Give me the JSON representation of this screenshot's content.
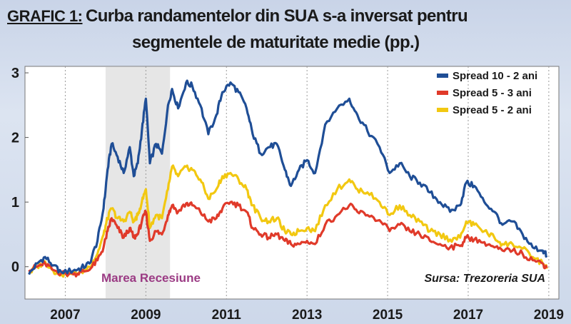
{
  "figure_label": "GRAFIC 1:",
  "title_line1": "Curba randamentelor din SUA s-a inversat pentru",
  "title_line2": "segmentele de maturitate medie (pp.)",
  "chart_data": {
    "type": "line",
    "title": "Curba randamentelor din SUA s-a inversat pentru segmentele de maturitate medie (pp.)",
    "x_ticks": [
      "2007",
      "2009",
      "2011",
      "2013",
      "2015",
      "2017",
      "2019"
    ],
    "y_ticks": [
      "0",
      "1",
      "2",
      "3"
    ],
    "xlim": [
      2006.0,
      2019.25
    ],
    "ylim": [
      -0.5,
      3.1
    ],
    "grid": "vertical-dotted",
    "legend_position": "top-right",
    "shaded_region": {
      "x": [
        2008.0,
        2009.6
      ],
      "label": "Marea Recesiune",
      "color": "#e6e6e6"
    },
    "source": "Sursa: Trezoreria SUA",
    "series": [
      {
        "name": "Spread 10 - 2 ani",
        "color": "#1f4e96",
        "points": [
          [
            2006.1,
            -0.12
          ],
          [
            2006.3,
            0.05
          ],
          [
            2006.5,
            0.15
          ],
          [
            2006.7,
            0.02
          ],
          [
            2006.9,
            -0.08
          ],
          [
            2007.2,
            -0.06
          ],
          [
            2007.4,
            -0.02
          ],
          [
            2007.6,
            0.05
          ],
          [
            2007.8,
            0.4
          ],
          [
            2007.95,
            0.9
          ],
          [
            2008.05,
            1.5
          ],
          [
            2008.15,
            1.9
          ],
          [
            2008.3,
            1.7
          ],
          [
            2008.45,
            1.45
          ],
          [
            2008.6,
            1.85
          ],
          [
            2008.7,
            1.4
          ],
          [
            2008.8,
            1.6
          ],
          [
            2008.9,
            2.1
          ],
          [
            2009.0,
            2.6
          ],
          [
            2009.1,
            1.6
          ],
          [
            2009.25,
            1.9
          ],
          [
            2009.4,
            1.75
          ],
          [
            2009.55,
            2.5
          ],
          [
            2009.65,
            2.75
          ],
          [
            2009.8,
            2.45
          ],
          [
            2010.0,
            2.85
          ],
          [
            2010.15,
            2.8
          ],
          [
            2010.35,
            2.5
          ],
          [
            2010.55,
            2.05
          ],
          [
            2010.75,
            2.35
          ],
          [
            2010.9,
            2.7
          ],
          [
            2011.1,
            2.85
          ],
          [
            2011.3,
            2.7
          ],
          [
            2011.5,
            2.45
          ],
          [
            2011.65,
            2.05
          ],
          [
            2011.85,
            1.75
          ],
          [
            2012.05,
            1.85
          ],
          [
            2012.25,
            1.9
          ],
          [
            2012.45,
            1.5
          ],
          [
            2012.6,
            1.25
          ],
          [
            2012.8,
            1.5
          ],
          [
            2013.0,
            1.65
          ],
          [
            2013.2,
            1.45
          ],
          [
            2013.45,
            2.2
          ],
          [
            2013.75,
            2.45
          ],
          [
            2014.05,
            2.6
          ],
          [
            2014.25,
            2.35
          ],
          [
            2014.5,
            2.1
          ],
          [
            2014.8,
            1.85
          ],
          [
            2015.05,
            1.45
          ],
          [
            2015.3,
            1.6
          ],
          [
            2015.55,
            1.4
          ],
          [
            2015.8,
            1.3
          ],
          [
            2016.05,
            1.15
          ],
          [
            2016.3,
            1.0
          ],
          [
            2016.55,
            0.85
          ],
          [
            2016.8,
            0.95
          ],
          [
            2016.95,
            1.3
          ],
          [
            2017.15,
            1.25
          ],
          [
            2017.4,
            1.0
          ],
          [
            2017.65,
            0.85
          ],
          [
            2017.85,
            0.65
          ],
          [
            2018.1,
            0.7
          ],
          [
            2018.35,
            0.5
          ],
          [
            2018.6,
            0.3
          ],
          [
            2018.85,
            0.25
          ],
          [
            2018.95,
            0.17
          ]
        ]
      },
      {
        "name": "Spread 5 - 3 ani",
        "color": "#e03a2a",
        "points": [
          [
            2006.1,
            -0.05
          ],
          [
            2006.3,
            0.0
          ],
          [
            2006.5,
            0.05
          ],
          [
            2006.7,
            -0.05
          ],
          [
            2006.9,
            -0.1
          ],
          [
            2007.2,
            -0.12
          ],
          [
            2007.4,
            -0.08
          ],
          [
            2007.6,
            -0.05
          ],
          [
            2007.8,
            0.1
          ],
          [
            2007.95,
            0.3
          ],
          [
            2008.05,
            0.55
          ],
          [
            2008.15,
            0.75
          ],
          [
            2008.3,
            0.6
          ],
          [
            2008.45,
            0.45
          ],
          [
            2008.6,
            0.6
          ],
          [
            2008.7,
            0.45
          ],
          [
            2008.8,
            0.5
          ],
          [
            2008.9,
            0.7
          ],
          [
            2009.0,
            0.85
          ],
          [
            2009.1,
            0.4
          ],
          [
            2009.25,
            0.55
          ],
          [
            2009.4,
            0.5
          ],
          [
            2009.55,
            0.8
          ],
          [
            2009.65,
            0.95
          ],
          [
            2009.8,
            0.85
          ],
          [
            2010.0,
            0.98
          ],
          [
            2010.15,
            0.95
          ],
          [
            2010.35,
            0.85
          ],
          [
            2010.55,
            0.7
          ],
          [
            2010.75,
            0.75
          ],
          [
            2010.9,
            0.9
          ],
          [
            2011.1,
            1.0
          ],
          [
            2011.3,
            0.95
          ],
          [
            2011.5,
            0.85
          ],
          [
            2011.65,
            0.6
          ],
          [
            2011.85,
            0.5
          ],
          [
            2012.05,
            0.45
          ],
          [
            2012.25,
            0.5
          ],
          [
            2012.45,
            0.4
          ],
          [
            2012.6,
            0.35
          ],
          [
            2012.8,
            0.35
          ],
          [
            2013.0,
            0.4
          ],
          [
            2013.2,
            0.35
          ],
          [
            2013.45,
            0.65
          ],
          [
            2013.75,
            0.8
          ],
          [
            2014.05,
            0.95
          ],
          [
            2014.25,
            0.85
          ],
          [
            2014.5,
            0.8
          ],
          [
            2014.8,
            0.72
          ],
          [
            2015.05,
            0.55
          ],
          [
            2015.3,
            0.65
          ],
          [
            2015.55,
            0.55
          ],
          [
            2015.8,
            0.5
          ],
          [
            2016.05,
            0.4
          ],
          [
            2016.3,
            0.35
          ],
          [
            2016.55,
            0.3
          ],
          [
            2016.8,
            0.32
          ],
          [
            2016.95,
            0.45
          ],
          [
            2017.15,
            0.42
          ],
          [
            2017.4,
            0.38
          ],
          [
            2017.65,
            0.3
          ],
          [
            2017.85,
            0.25
          ],
          [
            2018.1,
            0.25
          ],
          [
            2018.35,
            0.2
          ],
          [
            2018.6,
            0.1
          ],
          [
            2018.85,
            0.05
          ],
          [
            2018.95,
            -0.02
          ]
        ]
      },
      {
        "name": "Spread 5 - 2 ani",
        "color": "#f2c811",
        "points": [
          [
            2006.1,
            -0.1
          ],
          [
            2006.3,
            0.0
          ],
          [
            2006.5,
            0.08
          ],
          [
            2006.7,
            -0.06
          ],
          [
            2006.9,
            -0.12
          ],
          [
            2007.2,
            -0.1
          ],
          [
            2007.4,
            -0.08
          ],
          [
            2007.6,
            0.0
          ],
          [
            2007.8,
            0.2
          ],
          [
            2007.95,
            0.5
          ],
          [
            2008.05,
            0.75
          ],
          [
            2008.15,
            0.9
          ],
          [
            2008.3,
            0.75
          ],
          [
            2008.45,
            0.7
          ],
          [
            2008.6,
            0.85
          ],
          [
            2008.7,
            0.7
          ],
          [
            2008.8,
            0.8
          ],
          [
            2008.9,
            1.0
          ],
          [
            2009.0,
            1.2
          ],
          [
            2009.1,
            0.6
          ],
          [
            2009.25,
            0.8
          ],
          [
            2009.4,
            0.75
          ],
          [
            2009.55,
            1.2
          ],
          [
            2009.65,
            1.55
          ],
          [
            2009.8,
            1.4
          ],
          [
            2010.0,
            1.55
          ],
          [
            2010.15,
            1.5
          ],
          [
            2010.35,
            1.35
          ],
          [
            2010.55,
            1.05
          ],
          [
            2010.75,
            1.2
          ],
          [
            2010.9,
            1.4
          ],
          [
            2011.1,
            1.45
          ],
          [
            2011.3,
            1.35
          ],
          [
            2011.5,
            1.2
          ],
          [
            2011.65,
            0.95
          ],
          [
            2011.85,
            0.75
          ],
          [
            2012.05,
            0.7
          ],
          [
            2012.25,
            0.75
          ],
          [
            2012.45,
            0.55
          ],
          [
            2012.6,
            0.5
          ],
          [
            2012.8,
            0.55
          ],
          [
            2013.0,
            0.6
          ],
          [
            2013.2,
            0.55
          ],
          [
            2013.45,
            0.95
          ],
          [
            2013.75,
            1.2
          ],
          [
            2014.05,
            1.35
          ],
          [
            2014.25,
            1.2
          ],
          [
            2014.5,
            1.15
          ],
          [
            2014.8,
            1.0
          ],
          [
            2015.05,
            0.8
          ],
          [
            2015.3,
            0.95
          ],
          [
            2015.55,
            0.8
          ],
          [
            2015.8,
            0.7
          ],
          [
            2016.05,
            0.55
          ],
          [
            2016.3,
            0.5
          ],
          [
            2016.55,
            0.42
          ],
          [
            2016.8,
            0.45
          ],
          [
            2016.95,
            0.7
          ],
          [
            2017.15,
            0.65
          ],
          [
            2017.4,
            0.55
          ],
          [
            2017.65,
            0.45
          ],
          [
            2017.85,
            0.35
          ],
          [
            2018.1,
            0.35
          ],
          [
            2018.35,
            0.28
          ],
          [
            2018.6,
            0.15
          ],
          [
            2018.85,
            0.05
          ],
          [
            2018.95,
            -0.03
          ]
        ]
      }
    ]
  }
}
